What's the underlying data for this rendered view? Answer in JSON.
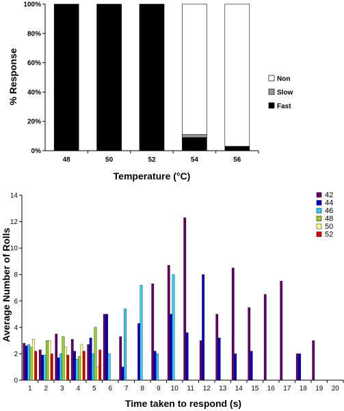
{
  "chart_data": [
    {
      "type": "bar",
      "stacked": true,
      "xlabel": "Temperature (°C)",
      "ylabel": "% Response",
      "categories": [
        "48",
        "50",
        "52",
        "54",
        "56"
      ],
      "ylim": [
        0,
        100
      ],
      "yticks": [
        "0%",
        "20%",
        "40%",
        "60%",
        "80%",
        "100%"
      ],
      "grid": false,
      "legend_position": "right",
      "series": [
        {
          "name": "Fast",
          "color": "#000000",
          "values": [
            100,
            100,
            100,
            9,
            3
          ]
        },
        {
          "name": "Slow",
          "color": "#999999",
          "values": [
            0,
            0,
            0,
            2,
            0
          ]
        },
        {
          "name": "Non",
          "color": "#ffffff",
          "values": [
            0,
            0,
            0,
            89,
            97
          ]
        }
      ]
    },
    {
      "type": "bar",
      "xlabel": "Time taken to respond (s)",
      "ylabel": "Average Number of Rolls",
      "categories": [
        "1",
        "2",
        "3",
        "4",
        "5",
        "6",
        "7",
        "8",
        "9",
        "10",
        "11",
        "12",
        "13",
        "14",
        "15",
        "16",
        "17",
        "18",
        "19",
        "20"
      ],
      "ylim": [
        0,
        14
      ],
      "yticks": [
        "0",
        "2",
        "4",
        "6",
        "8",
        "10",
        "12",
        "14"
      ],
      "grid": false,
      "legend_position": "top-right",
      "series": [
        {
          "name": "42",
          "color": "#660066",
          "values": [
            2.8,
            2.3,
            3.5,
            3.1,
            2.7,
            5.0,
            3.3,
            null,
            7.3,
            8.7,
            12.3,
            3.0,
            5.0,
            8.5,
            5.5,
            6.5,
            7.5,
            2.0,
            3.0,
            null
          ]
        },
        {
          "name": "44",
          "color": "#0000cc",
          "values": [
            2.6,
            1.9,
            1.7,
            2.2,
            3.2,
            5.0,
            1.0,
            4.3,
            2.2,
            5.0,
            3.6,
            8.0,
            3.2,
            2.0,
            2.2,
            null,
            null,
            2.0,
            null,
            null
          ]
        },
        {
          "name": "46",
          "color": "#33ccff",
          "values": [
            2.7,
            1.9,
            2.0,
            1.6,
            2.0,
            2.0,
            5.4,
            7.2,
            2.0,
            8.0,
            null,
            null,
            null,
            null,
            null,
            null,
            null,
            null,
            null,
            null
          ]
        },
        {
          "name": "48",
          "color": "#99cc33",
          "values": [
            2.5,
            3.0,
            3.3,
            1.8,
            4.0,
            null,
            null,
            null,
            null,
            null,
            null,
            null,
            null,
            null,
            null,
            null,
            null,
            null,
            null,
            null
          ]
        },
        {
          "name": "50",
          "color": "#ffff99",
          "values": [
            3.1,
            3.0,
            2.5,
            2.7,
            1.0,
            null,
            null,
            null,
            null,
            null,
            null,
            null,
            null,
            null,
            null,
            null,
            null,
            null,
            null,
            null
          ]
        },
        {
          "name": "52",
          "color": "#dd0000",
          "values": [
            2.2,
            2.0,
            1.9,
            2.2,
            2.3,
            null,
            null,
            null,
            null,
            null,
            null,
            null,
            null,
            null,
            null,
            null,
            null,
            null,
            null,
            null
          ]
        }
      ]
    }
  ]
}
